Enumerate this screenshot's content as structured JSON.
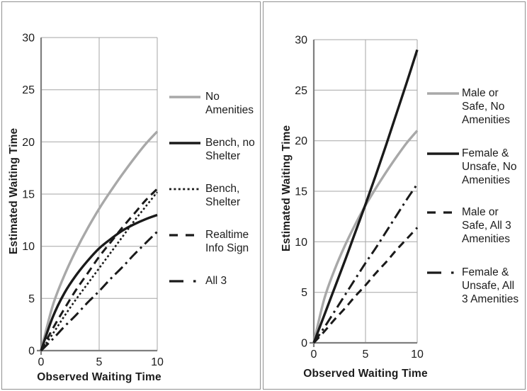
{
  "page": {
    "background": "#ffffff",
    "panel_border_color": "#909090",
    "grid_color": "#a6a6a6",
    "axis_color": "#7f7f7f",
    "text_color": "#1c1c1c",
    "gray_series_color": "#a8a8a8",
    "black_series_color": "#1a1a1a"
  },
  "chart_data": [
    {
      "type": "line",
      "title": "",
      "xlabel": "Observed Waiting Time",
      "ylabel": "Estimated Waiting Time",
      "xlim": [
        0,
        10
      ],
      "ylim": [
        0,
        30
      ],
      "xticks": [
        0,
        5,
        10
      ],
      "yticks": [
        0,
        5,
        10,
        15,
        20,
        25,
        30
      ],
      "grid": true,
      "legend_position": "right",
      "x": [
        0,
        1,
        2,
        3,
        4,
        5,
        6,
        7,
        8,
        9,
        10
      ],
      "series": [
        {
          "name": "No Amenities",
          "legend_lines": [
            "No",
            "Amenities"
          ],
          "line_style": "solid",
          "color": "#a8a8a8",
          "values": [
            0,
            4.3,
            7.2,
            9.6,
            11.7,
            13.6,
            15.3,
            16.9,
            18.4,
            19.8,
            21
          ]
        },
        {
          "name": "Bench, no Shelter",
          "legend_lines": [
            "Bench, no",
            "Shelter"
          ],
          "line_style": "solid",
          "color": "#1a1a1a",
          "values": [
            0,
            3.2,
            5.5,
            7.2,
            8.6,
            9.8,
            10.7,
            11.5,
            12.1,
            12.6,
            13
          ]
        },
        {
          "name": "Bench, Shelter",
          "legend_lines": [
            "Bench,",
            "Shelter"
          ],
          "line_style": "dotted",
          "color": "#1a1a1a",
          "values": [
            0,
            1.6,
            3.3,
            4.9,
            6.4,
            7.9,
            9.4,
            10.9,
            12.4,
            13.8,
            15.2
          ]
        },
        {
          "name": "Realtime Info Sign",
          "legend_lines": [
            "Realtime",
            "Info Sign"
          ],
          "line_style": "dashed",
          "color": "#1a1a1a",
          "values": [
            0,
            2.1,
            4.0,
            5.8,
            7.4,
            9.0,
            10.4,
            11.8,
            13.1,
            14.4,
            15.5
          ]
        },
        {
          "name": "All 3",
          "legend_lines": [
            "All 3"
          ],
          "line_style": "dashdot",
          "color": "#1a1a1a",
          "values": [
            0,
            1.1,
            2.3,
            3.4,
            4.6,
            5.7,
            6.9,
            8.0,
            9.2,
            10.3,
            11.4
          ]
        }
      ]
    },
    {
      "type": "line",
      "title": "",
      "xlabel": "Observed Waiting Time",
      "ylabel": "Estimated Waiting Time",
      "xlim": [
        0,
        10
      ],
      "ylim": [
        0,
        30
      ],
      "xticks": [
        0,
        5,
        10
      ],
      "yticks": [
        0,
        5,
        10,
        15,
        20,
        25,
        30
      ],
      "grid": true,
      "legend_position": "right",
      "x": [
        0,
        1,
        2,
        3,
        4,
        5,
        6,
        7,
        8,
        9,
        10
      ],
      "series": [
        {
          "name": "Male or Safe, No Amenities",
          "legend_lines": [
            "Male or",
            "Safe, No",
            "Amenities"
          ],
          "line_style": "solid",
          "color": "#a8a8a8",
          "values": [
            0,
            4.3,
            7.2,
            9.6,
            11.7,
            13.6,
            15.3,
            16.9,
            18.4,
            19.8,
            21
          ]
        },
        {
          "name": "Female & Unsafe, No Amenities",
          "legend_lines": [
            "Female &",
            "Unsafe, No",
            "Amenities"
          ],
          "line_style": "solid",
          "color": "#1a1a1a",
          "values": [
            0,
            2.7,
            5.4,
            8.1,
            10.9,
            13.7,
            16.6,
            19.6,
            22.7,
            25.8,
            29
          ]
        },
        {
          "name": "Male or Safe, All 3 Amenities",
          "legend_lines": [
            "Male or",
            "Safe, All 3",
            "Amenities"
          ],
          "line_style": "dashed",
          "color": "#1a1a1a",
          "values": [
            0,
            1.1,
            2.3,
            3.4,
            4.6,
            5.7,
            6.9,
            8.0,
            9.2,
            10.3,
            11.4
          ]
        },
        {
          "name": "Female & Unsafe, All 3 Amenities",
          "legend_lines": [
            "Female &",
            "Unsafe, All",
            "3 Amenities"
          ],
          "line_style": "dashdot",
          "color": "#1a1a1a",
          "values": [
            0,
            1.5,
            3.1,
            4.7,
            6.3,
            7.9,
            9.4,
            11.0,
            12.6,
            14.2,
            15.7
          ]
        }
      ]
    }
  ]
}
